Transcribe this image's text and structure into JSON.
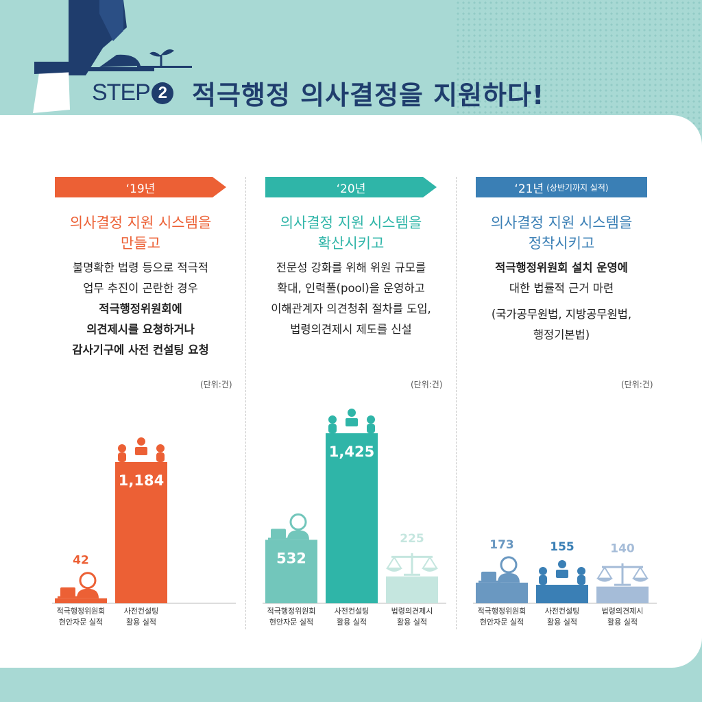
{
  "header": {
    "step_label": "STEP",
    "step_number": "2",
    "title": "적극행정 의사결정을 지원하다!"
  },
  "columns": [
    {
      "year": "‘19년",
      "year_note": "",
      "color": "#ec6035",
      "subtitle_lines": [
        "의사결정 지원 시스템을",
        "만들고"
      ],
      "desc_lines": [
        "불명확한 법령 등으로 적극적",
        "업무 추진이 곤란한 경우",
        "적극행정위원회에",
        "의견제시를 요청하거나",
        "감사기구에 사전 컨설팅 요청"
      ],
      "unit": "(단위:건)"
    },
    {
      "year": "‘20년",
      "year_note": "",
      "color": "#2fb5a8",
      "subtitle_lines": [
        "의사결정 지원 시스템을",
        "확산시키고"
      ],
      "desc_lines": [
        "전문성 강화를 위해 위원 규모를",
        "확대, 인력풀(pool)을 운영하고",
        "이해관계자 의견청취 절차를 도입,",
        "법령의견제시 제도를 신설"
      ],
      "unit": "(단위:건)"
    },
    {
      "year": "‘21년",
      "year_note": "(상반기까지 실적)",
      "color": "#3a7fb5",
      "subtitle_lines": [
        "의사결정 지원 시스템을",
        "정착시키고"
      ],
      "desc_lines": [
        "적극행정위원회 설치 운영에",
        "대한 법률적 근거 마련",
        "(국가공무원법, 지방공무원법,",
        "행정기본법)"
      ],
      "unit": "(단위:건)"
    }
  ],
  "chart_data": [
    {
      "type": "bar",
      "title": "‘19년",
      "unit": "(단위:건)",
      "categories": [
        "적극행정위원회 현안자문 실적",
        "사전컨설팅 활용 실적"
      ],
      "category_lines": [
        [
          "적극행정위원회",
          "현안자문 실적"
        ],
        [
          "사전컨설팅",
          "활용 실적"
        ]
      ],
      "values": [
        42,
        1184
      ],
      "value_labels": [
        "42",
        "1,184"
      ],
      "colors": [
        "#ec6035",
        "#ec6035"
      ],
      "icons": [
        "consultant-laptop-icon",
        "meeting-table-icon"
      ]
    },
    {
      "type": "bar",
      "title": "‘20년",
      "unit": "(단위:건)",
      "categories": [
        "적극행정위원회 현안자문 실적",
        "사전컨설팅 활용 실적",
        "법령의견제시 활용 실적"
      ],
      "category_lines": [
        [
          "적극행정위원회",
          "현안자문 실적"
        ],
        [
          "사전컨설팅",
          "활용 실적"
        ],
        [
          "법령의견제시",
          "활용 실적"
        ]
      ],
      "values": [
        532,
        1425,
        225
      ],
      "value_labels": [
        "532",
        "1,425",
        "225"
      ],
      "colors": [
        "#72c6bb",
        "#2fb5a8",
        "#c5e6df"
      ],
      "icons": [
        "consultant-laptop-icon",
        "meeting-table-icon",
        "balance-scale-icon"
      ]
    },
    {
      "type": "bar",
      "title": "‘21년",
      "unit": "(단위:건)",
      "categories": [
        "적극행정위원회 현안자문 실적",
        "사전컨설팅 활용 실적",
        "법령의견제시 활용 실적"
      ],
      "category_lines": [
        [
          "적극행정위원회",
          "현안자문 실적"
        ],
        [
          "사전컨설팅",
          "활용 실적"
        ],
        [
          "법령의견제시",
          "활용 실적"
        ]
      ],
      "values": [
        173,
        155,
        140
      ],
      "value_labels": [
        "173",
        "155",
        "140"
      ],
      "colors": [
        "#6a98c1",
        "#3a7fb5",
        "#a5bcd8"
      ],
      "icons": [
        "consultant-laptop-icon",
        "meeting-table-icon",
        "balance-scale-icon"
      ]
    }
  ]
}
